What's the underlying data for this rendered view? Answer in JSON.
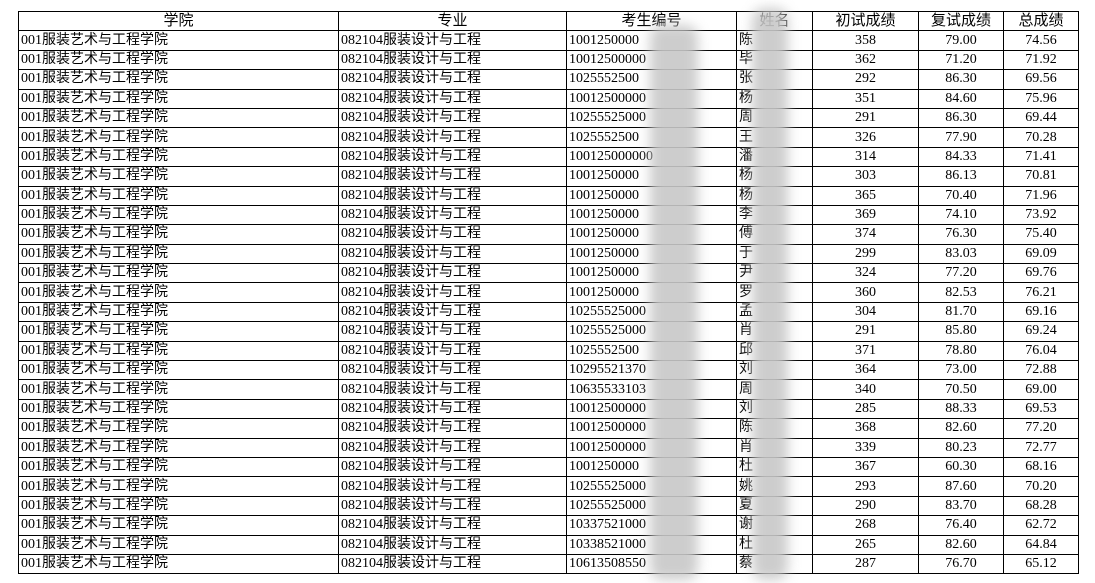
{
  "table": {
    "header": [
      "学院",
      "专业",
      "考生编号",
      "姓名",
      "初试成绩",
      "复试成绩",
      "总成绩"
    ],
    "rows": [
      [
        "001服装艺术与工程学院",
        "082104服装设计与工程",
        "1001250000",
        "陈",
        "358",
        "79.00",
        "74.56"
      ],
      [
        "001服装艺术与工程学院",
        "082104服装设计与工程",
        "10012500000",
        "毕",
        "362",
        "71.20",
        "71.92"
      ],
      [
        "001服装艺术与工程学院",
        "082104服装设计与工程",
        "1025552500",
        "张",
        "292",
        "86.30",
        "69.56"
      ],
      [
        "001服装艺术与工程学院",
        "082104服装设计与工程",
        "10012500000",
        "杨",
        "351",
        "84.60",
        "75.96"
      ],
      [
        "001服装艺术与工程学院",
        "082104服装设计与工程",
        "10255525000",
        "周",
        "291",
        "86.30",
        "69.44"
      ],
      [
        "001服装艺术与工程学院",
        "082104服装设计与工程",
        "1025552500",
        "王",
        "326",
        "77.90",
        "70.28"
      ],
      [
        "001服装艺术与工程学院",
        "082104服装设计与工程",
        "100125000000",
        "潘",
        "314",
        "84.33",
        "71.41"
      ],
      [
        "001服装艺术与工程学院",
        "082104服装设计与工程",
        "1001250000",
        "杨",
        "303",
        "86.13",
        "70.81"
      ],
      [
        "001服装艺术与工程学院",
        "082104服装设计与工程",
        "1001250000",
        "杨",
        "365",
        "70.40",
        "71.96"
      ],
      [
        "001服装艺术与工程学院",
        "082104服装设计与工程",
        "1001250000",
        "李",
        "369",
        "74.10",
        "73.92"
      ],
      [
        "001服装艺术与工程学院",
        "082104服装设计与工程",
        "1001250000",
        "傅",
        "374",
        "76.30",
        "75.40"
      ],
      [
        "001服装艺术与工程学院",
        "082104服装设计与工程",
        "1001250000",
        "于",
        "299",
        "83.03",
        "69.09"
      ],
      [
        "001服装艺术与工程学院",
        "082104服装设计与工程",
        "1001250000",
        "尹",
        "324",
        "77.20",
        "69.76"
      ],
      [
        "001服装艺术与工程学院",
        "082104服装设计与工程",
        "1001250000",
        "罗",
        "360",
        "82.53",
        "76.21"
      ],
      [
        "001服装艺术与工程学院",
        "082104服装设计与工程",
        "10255525000",
        "孟",
        "304",
        "81.70",
        "69.16"
      ],
      [
        "001服装艺术与工程学院",
        "082104服装设计与工程",
        "10255525000",
        "肖",
        "291",
        "85.80",
        "69.24"
      ],
      [
        "001服装艺术与工程学院",
        "082104服装设计与工程",
        "1025552500",
        "邱",
        "371",
        "78.80",
        "76.04"
      ],
      [
        "001服装艺术与工程学院",
        "082104服装设计与工程",
        "10295521370",
        "刘",
        "364",
        "73.00",
        "72.88"
      ],
      [
        "001服装艺术与工程学院",
        "082104服装设计与工程",
        "10635533103",
        "周",
        "340",
        "70.50",
        "69.00"
      ],
      [
        "001服装艺术与工程学院",
        "082104服装设计与工程",
        "10012500000",
        "刘",
        "285",
        "88.33",
        "69.53"
      ],
      [
        "001服装艺术与工程学院",
        "082104服装设计与工程",
        "10012500000",
        "陈",
        "368",
        "82.60",
        "77.20"
      ],
      [
        "001服装艺术与工程学院",
        "082104服装设计与工程",
        "10012500000",
        "肖",
        "339",
        "80.23",
        "72.77"
      ],
      [
        "001服装艺术与工程学院",
        "082104服装设计与工程",
        "1001250000",
        "杜",
        "367",
        "60.30",
        "68.16"
      ],
      [
        "001服装艺术与工程学院",
        "082104服装设计与工程",
        "10255525000",
        "姚",
        "293",
        "87.60",
        "70.20"
      ],
      [
        "001服装艺术与工程学院",
        "082104服装设计与工程",
        "10255525000",
        "夏",
        "290",
        "83.70",
        "68.28"
      ],
      [
        "001服装艺术与工程学院",
        "082104服装设计与工程",
        "10337521000",
        "谢",
        "268",
        "76.40",
        "62.72"
      ],
      [
        "001服装艺术与工程学院",
        "082104服装设计与工程",
        "10338521000",
        "杜",
        "265",
        "82.60",
        "64.84"
      ],
      [
        "001服装艺术与工程学院",
        "082104服装设计与工程",
        "10613508550",
        "蔡",
        "287",
        "76.70",
        "65.12"
      ]
    ]
  }
}
